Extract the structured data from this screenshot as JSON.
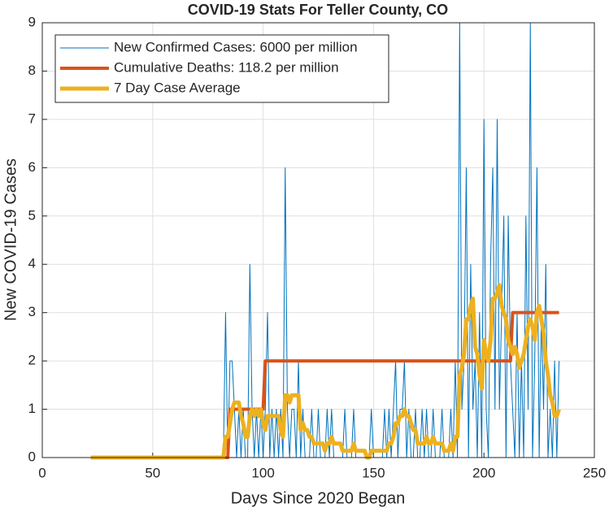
{
  "chart_data": {
    "type": "line",
    "title": "COVID-19 Stats For Teller County, CO",
    "xlabel": "Days Since 2020 Began",
    "ylabel": "New COVID-19 Cases",
    "xlim": [
      0,
      250
    ],
    "xticks": [
      0,
      50,
      100,
      150,
      200,
      250
    ],
    "ylim": [
      0,
      9
    ],
    "yticks": [
      0,
      1,
      2,
      3,
      4,
      5,
      6,
      7,
      8,
      9
    ],
    "grid": true,
    "legend": "northwest",
    "x": [
      22,
      23,
      24,
      25,
      26,
      27,
      28,
      29,
      30,
      31,
      32,
      33,
      34,
      35,
      36,
      37,
      38,
      39,
      40,
      41,
      42,
      43,
      44,
      45,
      46,
      47,
      48,
      49,
      50,
      51,
      52,
      53,
      54,
      55,
      56,
      57,
      58,
      59,
      60,
      61,
      62,
      63,
      64,
      65,
      66,
      67,
      68,
      69,
      70,
      71,
      72,
      73,
      74,
      75,
      76,
      77,
      78,
      79,
      80,
      81,
      82,
      83,
      84,
      85,
      86,
      87,
      88,
      89,
      90,
      91,
      92,
      93,
      94,
      95,
      96,
      97,
      98,
      99,
      100,
      101,
      102,
      103,
      104,
      105,
      106,
      107,
      108,
      109,
      110,
      111,
      112,
      113,
      114,
      115,
      116,
      117,
      118,
      119,
      120,
      121,
      122,
      123,
      124,
      125,
      126,
      127,
      128,
      129,
      130,
      131,
      132,
      133,
      134,
      135,
      136,
      137,
      138,
      139,
      140,
      141,
      142,
      143,
      144,
      145,
      146,
      147,
      148,
      149,
      150,
      151,
      152,
      153,
      154,
      155,
      156,
      157,
      158,
      159,
      160,
      161,
      162,
      163,
      164,
      165,
      166,
      167,
      168,
      169,
      170,
      171,
      172,
      173,
      174,
      175,
      176,
      177,
      178,
      179,
      180,
      181,
      182,
      183,
      184,
      185,
      186,
      187,
      188,
      189,
      190,
      191,
      192,
      193,
      194,
      195,
      196,
      197,
      198,
      199,
      200,
      201,
      202,
      203,
      204,
      205,
      206,
      207,
      208,
      209,
      210,
      211,
      212,
      213,
      214,
      215,
      216,
      217,
      218,
      219,
      220,
      221,
      222,
      223,
      224,
      225,
      226,
      227,
      228,
      229,
      230,
      231,
      232,
      233,
      234
    ],
    "series": [
      {
        "name": "New Confirmed Cases: 6000 per million",
        "color": "#0072bd",
        "width": 1,
        "values": [
          0,
          0,
          0,
          0,
          0,
          0,
          0,
          0,
          0,
          0,
          0,
          0,
          0,
          0,
          0,
          0,
          0,
          0,
          0,
          0,
          0,
          0,
          0,
          0,
          0,
          0,
          0,
          0,
          0,
          0,
          0,
          0,
          0,
          0,
          0,
          0,
          0,
          0,
          0,
          0,
          0,
          0,
          0,
          0,
          0,
          0,
          0,
          0,
          0,
          0,
          0,
          0,
          0,
          0,
          0,
          0,
          0,
          0,
          0,
          0,
          0,
          3,
          0,
          2,
          2,
          1,
          0,
          1,
          0,
          1,
          0,
          0,
          4,
          1,
          0,
          1,
          0,
          1,
          0,
          1,
          3,
          0,
          1,
          0,
          1,
          0,
          1,
          0,
          6,
          1,
          0,
          1,
          1,
          0,
          2,
          0,
          1,
          0,
          0,
          0,
          1,
          0,
          0,
          1,
          0,
          0,
          0,
          1,
          0,
          1,
          0,
          0,
          0,
          0,
          0,
          1,
          0,
          0,
          0,
          1,
          0,
          0,
          0,
          0,
          0,
          0,
          0,
          1,
          0,
          0,
          0,
          0,
          0,
          1,
          0,
          1,
          0,
          1,
          2,
          0,
          1,
          1,
          2,
          0,
          1,
          0,
          0,
          1,
          0,
          0,
          1,
          0,
          1,
          0,
          0,
          1,
          0,
          0,
          0,
          1,
          0,
          0,
          0,
          1,
          0,
          2,
          0,
          9,
          1,
          2,
          6,
          0,
          4,
          1,
          2,
          0,
          3,
          0,
          7,
          1,
          0,
          4,
          6,
          1,
          7,
          1,
          3,
          5,
          0,
          5,
          2,
          1,
          0,
          3,
          0,
          2,
          0,
          5,
          1,
          9,
          0,
          2,
          6,
          0,
          3,
          1,
          4,
          0,
          1,
          0,
          2,
          0,
          2
        ]
      },
      {
        "name": "Cumulative Deaths: 118.2 per million",
        "color": "#d95319",
        "width": 4,
        "values": [
          0,
          0,
          0,
          0,
          0,
          0,
          0,
          0,
          0,
          0,
          0,
          0,
          0,
          0,
          0,
          0,
          0,
          0,
          0,
          0,
          0,
          0,
          0,
          0,
          0,
          0,
          0,
          0,
          0,
          0,
          0,
          0,
          0,
          0,
          0,
          0,
          0,
          0,
          0,
          0,
          0,
          0,
          0,
          0,
          0,
          0,
          0,
          0,
          0,
          0,
          0,
          0,
          0,
          0,
          0,
          0,
          0,
          0,
          0,
          0,
          0,
          0,
          0,
          1,
          1,
          1,
          1,
          1,
          1,
          1,
          1,
          1,
          1,
          1,
          1,
          1,
          1,
          1,
          1,
          2,
          2,
          2,
          2,
          2,
          2,
          2,
          2,
          2,
          2,
          2,
          2,
          2,
          2,
          2,
          2,
          2,
          2,
          2,
          2,
          2,
          2,
          2,
          2,
          2,
          2,
          2,
          2,
          2,
          2,
          2,
          2,
          2,
          2,
          2,
          2,
          2,
          2,
          2,
          2,
          2,
          2,
          2,
          2,
          2,
          2,
          2,
          2,
          2,
          2,
          2,
          2,
          2,
          2,
          2,
          2,
          2,
          2,
          2,
          2,
          2,
          2,
          2,
          2,
          2,
          2,
          2,
          2,
          2,
          2,
          2,
          2,
          2,
          2,
          2,
          2,
          2,
          2,
          2,
          2,
          2,
          2,
          2,
          2,
          2,
          2,
          2,
          2,
          2,
          2,
          2,
          2,
          2,
          2,
          2,
          2,
          2,
          2,
          2,
          2,
          2,
          2,
          2,
          2,
          2,
          2,
          2,
          2,
          2,
          2,
          2,
          2,
          3,
          3,
          3,
          3,
          3,
          3,
          3,
          3,
          3,
          3,
          3,
          3,
          3,
          3,
          3,
          3,
          3,
          3,
          3,
          3,
          3,
          3
        ]
      },
      {
        "name": "7 Day Case Average",
        "color": "#edb120",
        "width": 5,
        "values": [
          0,
          0,
          0,
          0,
          0,
          0,
          0,
          0,
          0,
          0,
          0,
          0,
          0,
          0,
          0,
          0,
          0,
          0,
          0,
          0,
          0,
          0,
          0,
          0,
          0,
          0,
          0,
          0,
          0,
          0,
          0,
          0,
          0,
          0,
          0,
          0,
          0,
          0,
          0,
          0,
          0,
          0,
          0,
          0,
          0,
          0,
          0,
          0,
          0,
          0,
          0,
          0,
          0,
          0,
          0,
          0,
          0,
          0,
          0,
          0,
          0,
          0.43,
          0.43,
          0.71,
          1,
          1.14,
          1.14,
          1.14,
          0.86,
          0.71,
          0.43,
          0.43,
          0.86,
          1,
          0.86,
          1,
          0.86,
          1,
          0.71,
          0.57,
          0.86,
          0.86,
          0.86,
          0.86,
          0.86,
          0.86,
          0.57,
          0.43,
          1.29,
          1.29,
          1.14,
          1.29,
          1.29,
          1.29,
          1.29,
          0.57,
          0.71,
          0.57,
          0.57,
          0.43,
          0.43,
          0.29,
          0.29,
          0.29,
          0.29,
          0.29,
          0.14,
          0.29,
          0.29,
          0.43,
          0.29,
          0.29,
          0.29,
          0.29,
          0.14,
          0.14,
          0.14,
          0.14,
          0.14,
          0.29,
          0.14,
          0.14,
          0.14,
          0.14,
          0.14,
          0,
          0,
          0.14,
          0.14,
          0.14,
          0.14,
          0.14,
          0.14,
          0.14,
          0.14,
          0.29,
          0.29,
          0.43,
          0.71,
          0.71,
          0.86,
          0.86,
          1,
          0.86,
          0.86,
          0.71,
          0.57,
          0.57,
          0.29,
          0.29,
          0.29,
          0.29,
          0.43,
          0.29,
          0.29,
          0.43,
          0.29,
          0.29,
          0.29,
          0.29,
          0.14,
          0.14,
          0.14,
          0.29,
          0.14,
          0.43,
          0.43,
          1.71,
          1.86,
          2.14,
          2.86,
          2.86,
          3.14,
          3.29,
          2.29,
          2.14,
          1.71,
          1.43,
          2.43,
          2.14,
          2,
          2.43,
          3.29,
          3.29,
          3.43,
          3.57,
          3.14,
          3,
          2.86,
          2.43,
          2.29,
          2.14,
          2.29,
          2.14,
          1.86,
          2,
          2.14,
          2.43,
          2.71,
          2.86,
          2.71,
          2.43,
          3,
          3.14,
          2.86,
          2.57,
          2,
          1.71,
          1.29,
          1.14,
          0.86,
          0.86,
          1
        ]
      }
    ]
  }
}
